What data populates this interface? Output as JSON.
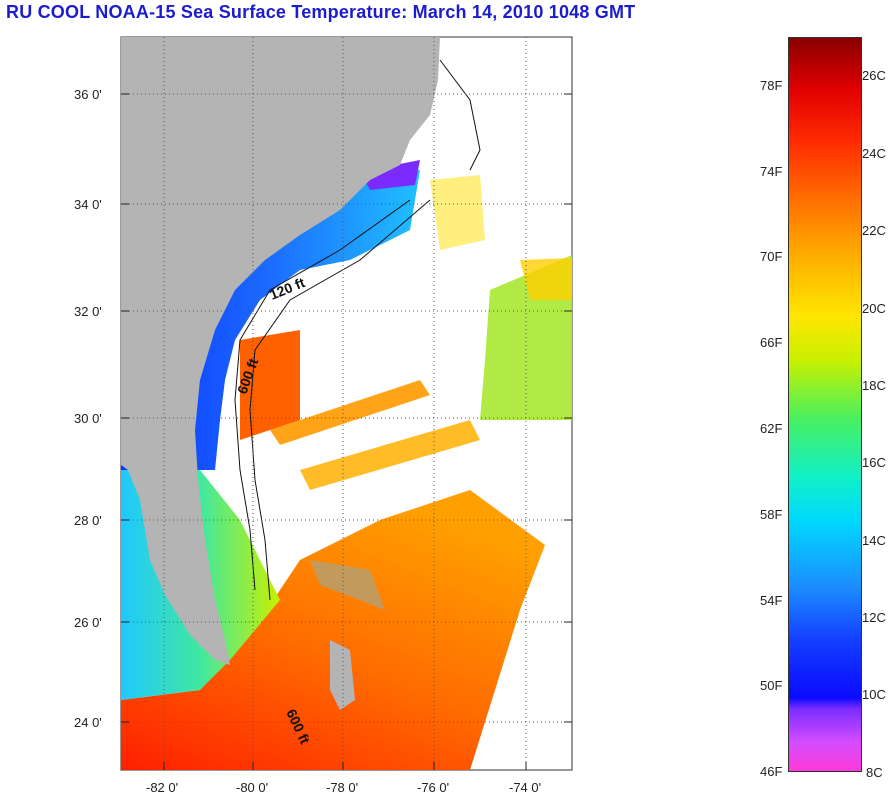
{
  "title": "RU COOL  NOAA-15  Sea Surface Temperature:  March 14, 2010 1048 GMT",
  "map": {
    "lat_ticks": [
      "36 0'",
      "34 0'",
      "32 0'",
      "30 0'",
      "28 0'",
      "26 0'",
      "24 0'"
    ],
    "lon_ticks": [
      "-82 0'",
      "-80 0'",
      "-78 0'",
      "-76 0'",
      "-74 0'"
    ],
    "isobath_labels": [
      "120 ft",
      "600 ft",
      "600 ft"
    ],
    "colors": {
      "land": "#b4b4b4",
      "clouds": "#ffffff"
    }
  },
  "scale": {
    "fahrenheit": [
      "78F",
      "74F",
      "70F",
      "66F",
      "62F",
      "58F",
      "54F",
      "50F",
      "46F"
    ],
    "celsius": [
      "26C",
      "24C",
      "22C",
      "20C",
      "18C",
      "16C",
      "14C",
      "12C",
      "10C",
      "8C"
    ]
  }
}
